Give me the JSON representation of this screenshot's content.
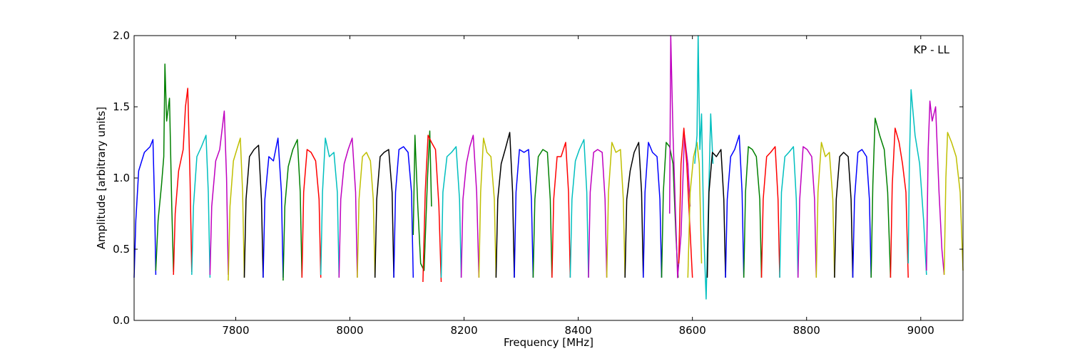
{
  "chart_data": {
    "type": "line",
    "annotation": "KP - LL",
    "xlabel": "Frequency [MHz]",
    "ylabel": "Amplitude [arbitrary units]",
    "xlim": [
      7622,
      9074
    ],
    "ylim": [
      0.0,
      2.0
    ],
    "grid": false,
    "x_ticks": [
      7800,
      8000,
      8200,
      8400,
      8600,
      8800,
      9000
    ],
    "y_ticks": [
      0.0,
      0.5,
      1.0,
      1.5,
      2.0
    ],
    "x_tick_labels": [
      "7800",
      "8000",
      "8200",
      "8400",
      "8600",
      "8800",
      "9000"
    ],
    "y_tick_labels": [
      "0.0",
      "0.5",
      "1.0",
      "1.5",
      "2.0"
    ],
    "colors": {
      "blue": "#0000ff",
      "green": "#008000",
      "red": "#ff0000",
      "cyan": "#00bfbf",
      "magenta": "#bf00bf",
      "yellow": "#bfbf00",
      "black": "#000000",
      "gray": "#bbbbbb"
    },
    "series": [
      {
        "color": "blue",
        "x": [
          7622,
          7625,
          7630,
          7640,
          7650,
          7655,
          7658,
          7660
        ],
        "y": [
          0.3,
          0.7,
          1.05,
          1.18,
          1.22,
          1.27,
          0.8,
          0.32
        ]
      },
      {
        "color": "green",
        "x": [
          7660,
          7664,
          7670,
          7674,
          7676,
          7679,
          7684,
          7688,
          7691
        ],
        "y": [
          0.35,
          0.7,
          0.95,
          1.15,
          1.8,
          1.4,
          1.56,
          0.8,
          0.34
        ]
      },
      {
        "color": "red",
        "x": [
          7691,
          7694,
          7700,
          7708,
          7712,
          7716,
          7720,
          7723
        ],
        "y": [
          0.32,
          0.75,
          1.05,
          1.2,
          1.5,
          1.63,
          1.0,
          0.34
        ]
      },
      {
        "color": "cyan",
        "x": [
          7723,
          7726,
          7732,
          7740,
          7748,
          7752,
          7755
        ],
        "y": [
          0.32,
          0.8,
          1.15,
          1.22,
          1.3,
          0.9,
          0.3
        ]
      },
      {
        "color": "magenta",
        "x": [
          7755,
          7758,
          7765,
          7772,
          7780,
          7784,
          7787
        ],
        "y": [
          0.32,
          0.8,
          1.12,
          1.2,
          1.47,
          1.0,
          0.32
        ]
      },
      {
        "color": "yellow",
        "x": [
          7787,
          7790,
          7796,
          7802,
          7808,
          7812,
          7815
        ],
        "y": [
          0.28,
          0.8,
          1.12,
          1.2,
          1.28,
          0.9,
          0.3
        ]
      },
      {
        "color": "black",
        "x": [
          7815,
          7818,
          7824,
          7832,
          7840,
          7845,
          7848
        ],
        "y": [
          0.3,
          0.85,
          1.15,
          1.2,
          1.23,
          0.85,
          0.3
        ]
      },
      {
        "color": "blue",
        "x": [
          7848,
          7851,
          7858,
          7866,
          7874,
          7880,
          7883
        ],
        "y": [
          0.3,
          0.85,
          1.15,
          1.12,
          1.28,
          0.9,
          0.3
        ]
      },
      {
        "color": "green",
        "x": [
          7883,
          7886,
          7892,
          7900,
          7908,
          7913,
          7916
        ],
        "y": [
          0.28,
          0.8,
          1.08,
          1.2,
          1.27,
          0.9,
          0.3
        ]
      },
      {
        "color": "red",
        "x": [
          7916,
          7919,
          7925,
          7932,
          7940,
          7946,
          7949
        ],
        "y": [
          0.3,
          0.9,
          1.2,
          1.18,
          1.12,
          0.85,
          0.3
        ]
      },
      {
        "color": "cyan",
        "x": [
          7949,
          7952,
          7957,
          7964,
          7972,
          7978,
          7981
        ],
        "y": [
          0.32,
          0.9,
          1.28,
          1.15,
          1.18,
          0.9,
          0.3
        ]
      },
      {
        "color": "magenta",
        "x": [
          7981,
          7984,
          7990,
          7997,
          8004,
          8010,
          8013
        ],
        "y": [
          0.3,
          0.85,
          1.1,
          1.2,
          1.28,
          0.9,
          0.3
        ]
      },
      {
        "color": "yellow",
        "x": [
          8013,
          8016,
          8022,
          8029,
          8036,
          8041,
          8044
        ],
        "y": [
          0.3,
          0.85,
          1.15,
          1.18,
          1.12,
          0.85,
          0.3
        ]
      },
      {
        "color": "black",
        "x": [
          8044,
          8047,
          8053,
          8060,
          8068,
          8074,
          8077
        ],
        "y": [
          0.3,
          0.85,
          1.15,
          1.18,
          1.2,
          0.9,
          0.3
        ]
      },
      {
        "color": "blue",
        "x": [
          8077,
          8080,
          8086,
          8094,
          8102,
          8108,
          8111
        ],
        "y": [
          0.3,
          0.9,
          1.2,
          1.22,
          1.18,
          0.9,
          0.3
        ]
      },
      {
        "color": "green",
        "x": [
          8111,
          8114,
          8119,
          8124,
          8130,
          8136,
          8140,
          8143
        ],
        "y": [
          0.6,
          1.3,
          0.8,
          0.4,
          0.35,
          1.0,
          1.33,
          0.8
        ]
      },
      {
        "color": "red",
        "x": [
          8128,
          8132,
          8137,
          8143,
          8150,
          8156,
          8160
        ],
        "y": [
          0.27,
          0.9,
          1.3,
          1.25,
          1.2,
          0.8,
          0.27
        ]
      },
      {
        "color": "cyan",
        "x": [
          8160,
          8163,
          8170,
          8178,
          8186,
          8192,
          8195
        ],
        "y": [
          0.3,
          0.9,
          1.15,
          1.18,
          1.22,
          0.85,
          0.3
        ]
      },
      {
        "color": "magenta",
        "x": [
          8195,
          8198,
          8204,
          8210,
          8216,
          8222,
          8226
        ],
        "y": [
          0.3,
          0.85,
          1.1,
          1.22,
          1.3,
          0.9,
          0.3
        ]
      },
      {
        "color": "yellow",
        "x": [
          8226,
          8229,
          8234,
          8240,
          8247,
          8253,
          8256
        ],
        "y": [
          0.3,
          0.9,
          1.28,
          1.18,
          1.15,
          0.85,
          0.3
        ]
      },
      {
        "color": "black",
        "x": [
          8256,
          8259,
          8265,
          8272,
          8280,
          8285,
          8288
        ],
        "y": [
          0.3,
          0.85,
          1.1,
          1.2,
          1.32,
          0.9,
          0.3
        ]
      },
      {
        "color": "blue",
        "x": [
          8288,
          8291,
          8297,
          8305,
          8313,
          8318,
          8321
        ],
        "y": [
          0.3,
          0.9,
          1.2,
          1.18,
          1.2,
          0.85,
          0.3
        ]
      },
      {
        "color": "green",
        "x": [
          8321,
          8324,
          8330,
          8338,
          8346,
          8351,
          8354
        ],
        "y": [
          0.3,
          0.85,
          1.15,
          1.2,
          1.18,
          0.85,
          0.3
        ]
      },
      {
        "color": "red",
        "x": [
          8354,
          8357,
          8363,
          8370,
          8378,
          8383,
          8386
        ],
        "y": [
          0.3,
          0.85,
          1.15,
          1.15,
          1.25,
          0.9,
          0.3
        ]
      },
      {
        "color": "cyan",
        "x": [
          8386,
          8389,
          8395,
          8402,
          8410,
          8415,
          8418
        ],
        "y": [
          0.3,
          0.85,
          1.12,
          1.2,
          1.27,
          0.9,
          0.3
        ]
      },
      {
        "color": "magenta",
        "x": [
          8418,
          8421,
          8427,
          8434,
          8442,
          8447,
          8450
        ],
        "y": [
          0.3,
          0.9,
          1.18,
          1.2,
          1.18,
          0.85,
          0.3
        ]
      },
      {
        "color": "yellow",
        "x": [
          8450,
          8453,
          8459,
          8466,
          8474,
          8479,
          8482
        ],
        "y": [
          0.3,
          0.9,
          1.25,
          1.18,
          1.2,
          0.85,
          0.3
        ]
      },
      {
        "color": "black",
        "x": [
          8482,
          8485,
          8491,
          8498,
          8506,
          8511,
          8514
        ],
        "y": [
          0.3,
          0.85,
          1.05,
          1.18,
          1.25,
          0.9,
          0.3
        ]
      },
      {
        "color": "blue",
        "x": [
          8514,
          8517,
          8523,
          8530,
          8538,
          8543,
          8546
        ],
        "y": [
          0.3,
          0.9,
          1.25,
          1.18,
          1.15,
          0.85,
          0.3
        ]
      },
      {
        "color": "green",
        "x": [
          8546,
          8549,
          8554,
          8560,
          8566,
          8571,
          8575
        ],
        "y": [
          0.3,
          0.9,
          1.25,
          1.22,
          1.1,
          0.6,
          0.3
        ]
      },
      {
        "color": "magenta",
        "x": [
          8560,
          8562,
          8566,
          8570,
          8574,
          8580,
          8586,
          8592,
          8596
        ],
        "y": [
          0.75,
          2.0,
          1.3,
          0.8,
          0.3,
          0.6,
          1.3,
          1.1,
          0.8
        ]
      },
      {
        "color": "red",
        "x": [
          8576,
          8580,
          8585,
          8590,
          8595,
          8600
        ],
        "y": [
          0.4,
          1.1,
          1.35,
          1.1,
          0.7,
          0.3
        ]
      },
      {
        "color": "yellow",
        "x": [
          8592,
          8596,
          8602,
          8608,
          8612,
          8616
        ],
        "y": [
          0.3,
          0.9,
          1.15,
          1.25,
          1.1,
          0.4
        ]
      },
      {
        "color": "cyan",
        "x": [
          8604,
          8608,
          8610,
          8613,
          8616,
          8620,
          8624,
          8628,
          8632,
          8636
        ],
        "y": [
          1.1,
          1.3,
          2.0,
          1.2,
          1.45,
          0.6,
          0.15,
          0.8,
          1.45,
          1.1
        ]
      },
      {
        "color": "black",
        "x": [
          8626,
          8629,
          8635,
          8642,
          8650,
          8655,
          8658
        ],
        "y": [
          0.3,
          0.9,
          1.18,
          1.15,
          1.2,
          0.85,
          0.3
        ]
      },
      {
        "color": "blue",
        "x": [
          8658,
          8661,
          8667,
          8674,
          8682,
          8687,
          8690
        ],
        "y": [
          0.3,
          0.85,
          1.15,
          1.2,
          1.3,
          0.9,
          0.3
        ]
      },
      {
        "color": "green",
        "x": [
          8690,
          8693,
          8698,
          8705,
          8712,
          8718,
          8721
        ],
        "y": [
          0.3,
          0.9,
          1.22,
          1.2,
          1.15,
          0.85,
          0.3
        ]
      },
      {
        "color": "red",
        "x": [
          8721,
          8724,
          8730,
          8737,
          8745,
          8750,
          8753
        ],
        "y": [
          0.3,
          0.85,
          1.15,
          1.18,
          1.22,
          0.85,
          0.3
        ]
      },
      {
        "color": "cyan",
        "x": [
          8753,
          8756,
          8762,
          8769,
          8777,
          8782,
          8785
        ],
        "y": [
          0.3,
          0.9,
          1.15,
          1.18,
          1.22,
          0.85,
          0.3
        ]
      },
      {
        "color": "magenta",
        "x": [
          8785,
          8788,
          8794,
          8801,
          8809,
          8814,
          8817
        ],
        "y": [
          0.3,
          0.85,
          1.22,
          1.2,
          1.15,
          0.85,
          0.3
        ]
      },
      {
        "color": "yellow",
        "x": [
          8817,
          8820,
          8826,
          8833,
          8840,
          8846,
          8849
        ],
        "y": [
          0.3,
          0.9,
          1.25,
          1.15,
          1.18,
          0.85,
          0.3
        ]
      },
      {
        "color": "black",
        "x": [
          8849,
          8852,
          8858,
          8865,
          8873,
          8878,
          8881
        ],
        "y": [
          0.3,
          0.85,
          1.15,
          1.18,
          1.15,
          0.85,
          0.3
        ]
      },
      {
        "color": "blue",
        "x": [
          8881,
          8884,
          8890,
          8897,
          8905,
          8910,
          8913
        ],
        "y": [
          0.3,
          0.85,
          1.18,
          1.2,
          1.15,
          0.85,
          0.3
        ]
      },
      {
        "color": "green",
        "x": [
          8913,
          8916,
          8920,
          8928,
          8936,
          8942,
          8947
        ],
        "y": [
          0.3,
          0.95,
          1.42,
          1.3,
          1.2,
          0.9,
          0.3
        ]
      },
      {
        "color": "red",
        "x": [
          8947,
          8950,
          8955,
          8962,
          8968,
          8974,
          8978
        ],
        "y": [
          0.3,
          0.95,
          1.35,
          1.25,
          1.1,
          0.9,
          0.3
        ]
      },
      {
        "color": "cyan",
        "x": [
          8978,
          8980,
          8983,
          8990,
          8998,
          9005,
          9010
        ],
        "y": [
          0.4,
          1.1,
          1.62,
          1.3,
          1.1,
          0.7,
          0.32
        ]
      },
      {
        "color": "magenta",
        "x": [
          9010,
          9013,
          9016,
          9020,
          9026,
          9032,
          9037,
          9041
        ],
        "y": [
          0.35,
          1.2,
          1.54,
          1.4,
          1.5,
          0.9,
          0.5,
          0.32
        ]
      },
      {
        "color": "yellow",
        "x": [
          9041,
          9044,
          9047,
          9054,
          9062,
          9069,
          9074
        ],
        "y": [
          0.32,
          1.0,
          1.32,
          1.25,
          1.15,
          0.9,
          0.35
        ]
      }
    ]
  }
}
